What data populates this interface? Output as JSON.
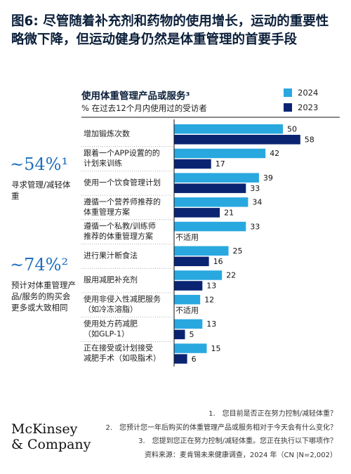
{
  "page": {
    "title": "图6: 尽管随着补充剂和药物的使用增长，运动的重要性略微下降，但运动健身仍然是体重管理的首要手段"
  },
  "side_stats": [
    {
      "value": "~54%¹",
      "text": "寻求管理/减轻体重"
    },
    {
      "value": "~74%²",
      "text": "预计对体重管理产品/服务的购买会更多或大致相同"
    }
  ],
  "footnotes": [
    "1.　您目前是否正在努力控制/减轻体重？",
    "2.　您预计您一年后购买的体重管理产品或服务相对于今天会有什么变化？",
    "3.　您提到您正在努力控制/减轻体重。您正在执行以下哪项作？"
  ],
  "source": "资料来源：麦肯锡未来健康调查，2024 年（CN |N=2,002）",
  "logo": [
    "McKinsey",
    "& Company"
  ],
  "colors": {
    "c2024": "#29a8e0",
    "c2023": "#0a2472"
  },
  "chart_data": {
    "type": "bar",
    "orientation": "horizontal",
    "title": "使用体重管理产品或服务³",
    "subtitle": "% 在过去12个月内使用过的受访者",
    "legend_position": "top-right",
    "categories": [
      [
        "增加锻炼次数"
      ],
      [
        "跟着一个APP设置的的",
        "计划来训练"
      ],
      [
        "使用一个饮食管理计划"
      ],
      [
        "遵循一个营养师推荐的",
        "体重管理方案"
      ],
      [
        "遵循一个私教/训练师",
        "推荐的体重管理方案"
      ],
      [
        "进行果汁断食法"
      ],
      [
        "服用减肥补充剂"
      ],
      [
        "使用非侵入性减肥服务",
        "（如冷冻溶脂）"
      ],
      [
        "使用处方药减肥",
        "（如GLP-1）"
      ],
      [
        "正在接受或计划接受",
        "减肥手术（如吸脂术）"
      ]
    ],
    "na_label": "不适用",
    "series": [
      {
        "name": "2024",
        "values": [
          50,
          42,
          39,
          34,
          33,
          25,
          22,
          12,
          13,
          15
        ]
      },
      {
        "name": "2023",
        "values": [
          58,
          17,
          33,
          21,
          null,
          16,
          13,
          null,
          5,
          6
        ]
      }
    ],
    "xlim": [
      0,
      60
    ],
    "grid": false
  }
}
